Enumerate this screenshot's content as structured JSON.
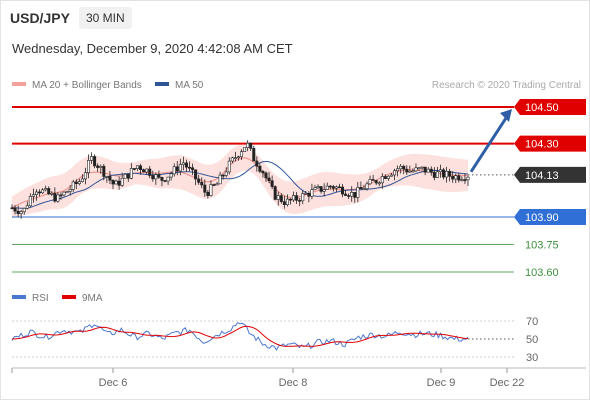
{
  "header": {
    "pair": "USD/JPY",
    "timeframe": "30 MIN",
    "datetime": "Wednesday, December 9, 2020 4:42:08 AM CET"
  },
  "legend": {
    "ma20": "MA 20 + Bollinger Bands",
    "ma50": "MA 50",
    "rsi": "RSI",
    "rsi_ma": "9MA"
  },
  "credit": "Research © 2020 Trading Central",
  "colors": {
    "resistance": "#e00000",
    "support": "#2f6fd6",
    "target": "#3d8f3d",
    "current": "#333333",
    "arrow": "#2f5ea6",
    "bollinger": "#f9c9c4",
    "ma20": "#f08a84",
    "ma50": "#2f5597",
    "rsi": "#4a78d0",
    "rsi_ma": "#e00000"
  },
  "levels": [
    {
      "label": "104.50",
      "value": 104.5,
      "kind": "resistance"
    },
    {
      "label": "104.30",
      "value": 104.3,
      "kind": "resistance"
    },
    {
      "label": "104.13",
      "value": 104.13,
      "kind": "current"
    },
    {
      "label": "103.90",
      "value": 103.9,
      "kind": "support"
    },
    {
      "label": "103.75",
      "value": 103.75,
      "kind": "target"
    },
    {
      "label": "103.60",
      "value": 103.6,
      "kind": "target"
    }
  ],
  "x_axis": {
    "ticks": [
      "Dec 6",
      "Dec 8",
      "Dec 9",
      "Dec 22"
    ]
  },
  "rsi_axis": {
    "ticks": [
      "70",
      "50",
      "30"
    ]
  },
  "chart_data": {
    "type": "candlestick",
    "instrument": "USD/JPY",
    "interval": "30 MIN",
    "price_range": [
      103.5,
      104.58
    ],
    "rsi_range": [
      25,
      75
    ],
    "price_path": [
      [
        0,
        103.95
      ],
      [
        5,
        103.93
      ],
      [
        10,
        104.06
      ],
      [
        15,
        104.03
      ],
      [
        20,
        104.0
      ],
      [
        25,
        104.05
      ],
      [
        30,
        104.1
      ],
      [
        35,
        104.22
      ],
      [
        40,
        104.15
      ],
      [
        45,
        104.07
      ],
      [
        50,
        104.12
      ],
      [
        55,
        104.18
      ],
      [
        60,
        104.15
      ],
      [
        65,
        104.1
      ],
      [
        70,
        104.14
      ],
      [
        75,
        104.2
      ],
      [
        80,
        104.12
      ],
      [
        85,
        104.03
      ],
      [
        90,
        104.08
      ],
      [
        95,
        104.18
      ],
      [
        100,
        104.26
      ],
      [
        103,
        104.3
      ],
      [
        106,
        104.22
      ],
      [
        110,
        104.15
      ],
      [
        115,
        104.02
      ],
      [
        120,
        103.98
      ],
      [
        125,
        104.0
      ],
      [
        130,
        104.03
      ],
      [
        135,
        104.05
      ],
      [
        140,
        104.07
      ],
      [
        145,
        104.05
      ],
      [
        150,
        104.02
      ],
      [
        155,
        104.07
      ],
      [
        160,
        104.1
      ],
      [
        165,
        104.14
      ],
      [
        170,
        104.17
      ],
      [
        175,
        104.15
      ],
      [
        180,
        104.16
      ],
      [
        185,
        104.14
      ],
      [
        190,
        104.13
      ],
      [
        195,
        104.12
      ],
      [
        200,
        104.13
      ]
    ],
    "rsi_path": [
      [
        0,
        50
      ],
      [
        8,
        58
      ],
      [
        15,
        52
      ],
      [
        22,
        60
      ],
      [
        30,
        57
      ],
      [
        36,
        68
      ],
      [
        42,
        55
      ],
      [
        48,
        60
      ],
      [
        54,
        52
      ],
      [
        60,
        56
      ],
      [
        66,
        50
      ],
      [
        72,
        57
      ],
      [
        78,
        60
      ],
      [
        84,
        47
      ],
      [
        90,
        55
      ],
      [
        96,
        62
      ],
      [
        100,
        70
      ],
      [
        104,
        57
      ],
      [
        110,
        45
      ],
      [
        116,
        40
      ],
      [
        122,
        44
      ],
      [
        128,
        40
      ],
      [
        134,
        46
      ],
      [
        140,
        48
      ],
      [
        146,
        44
      ],
      [
        152,
        52
      ],
      [
        158,
        55
      ],
      [
        164,
        53
      ],
      [
        170,
        58
      ],
      [
        176,
        55
      ],
      [
        182,
        56
      ],
      [
        188,
        54
      ],
      [
        194,
        50
      ],
      [
        200,
        50
      ]
    ],
    "forecast_target": 104.5,
    "rsi_reference": 50
  }
}
